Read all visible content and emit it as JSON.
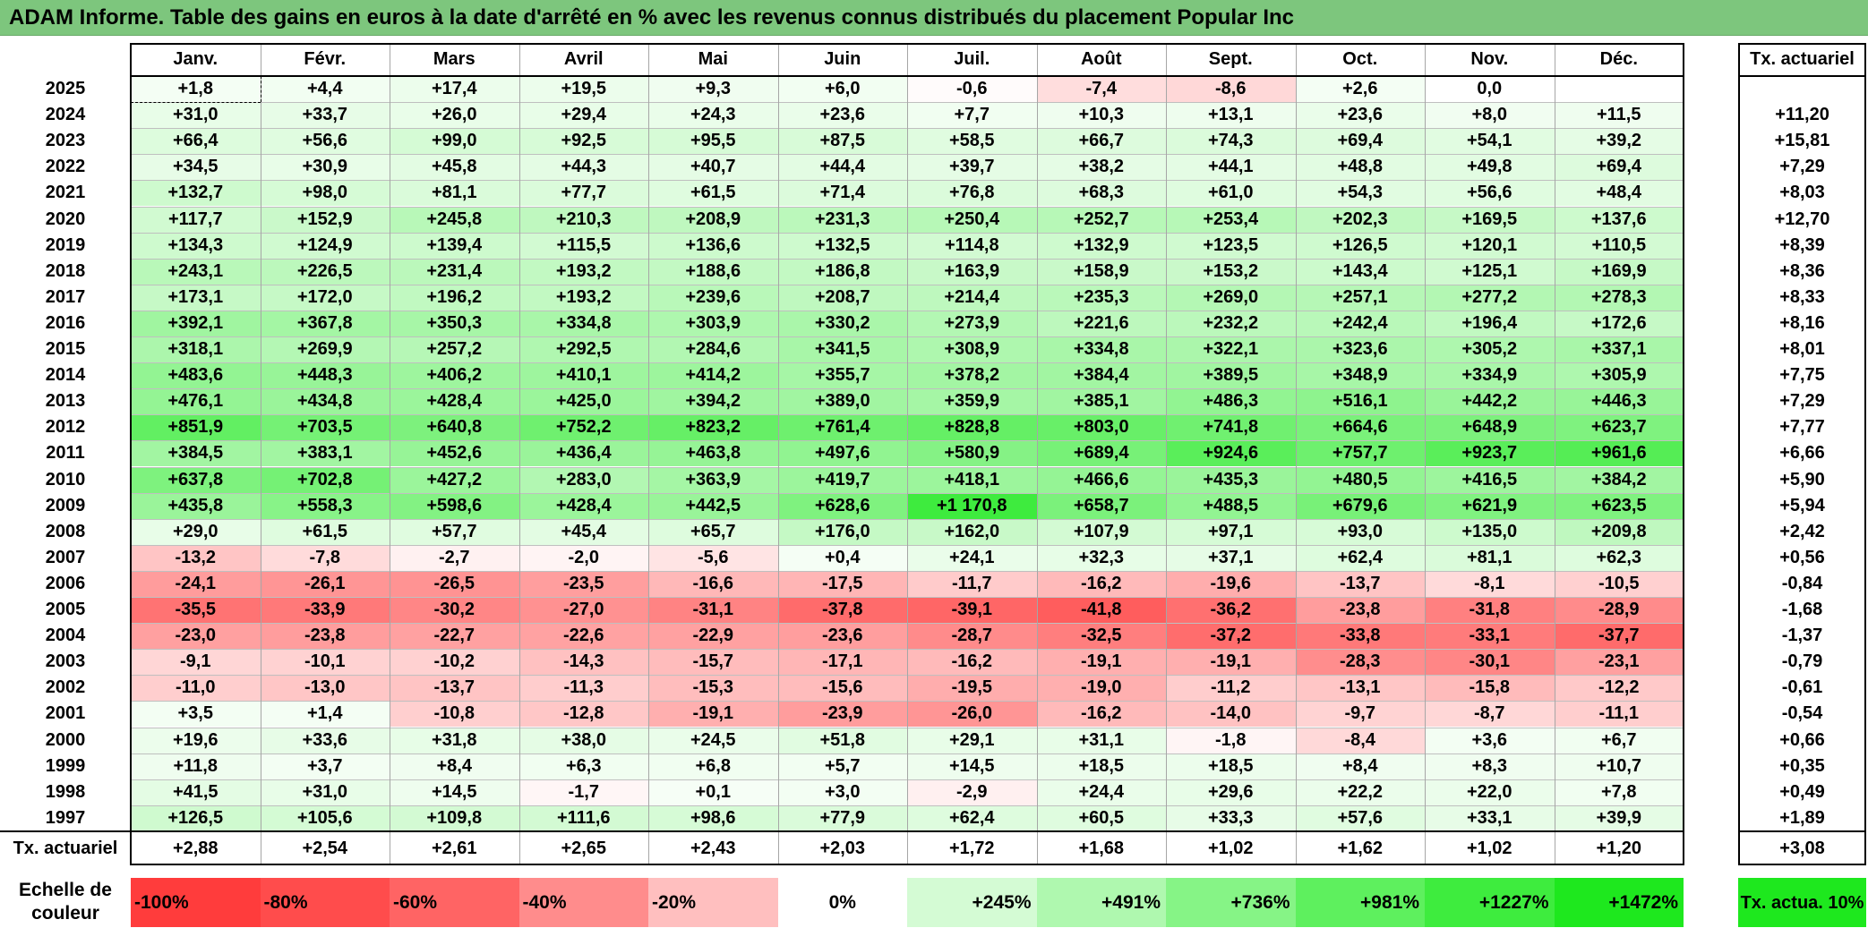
{
  "title": "ADAM Informe. Table des gains en euros à la date d'arrêté en % avec les revenus connus distribués du placement Popular Inc",
  "chart_data": {
    "type": "table",
    "months": [
      "Janv.",
      "Févr.",
      "Mars",
      "Avril",
      "Mai",
      "Juin",
      "Juil.",
      "Août",
      "Sept.",
      "Oct.",
      "Nov.",
      "Déc."
    ],
    "rate_header": "Tx. actuariel",
    "rows": [
      {
        "year": "2025",
        "values": [
          "+1,8",
          "+4,4",
          "+17,4",
          "+19,5",
          "+9,3",
          "+6,0",
          "-0,6",
          "-7,4",
          "-8,6",
          "+2,6",
          "0,0",
          ""
        ],
        "rate": ""
      },
      {
        "year": "2024",
        "values": [
          "+31,0",
          "+33,7",
          "+26,0",
          "+29,4",
          "+24,3",
          "+23,6",
          "+7,7",
          "+10,3",
          "+13,1",
          "+23,6",
          "+8,0",
          "+11,5"
        ],
        "rate": "+11,20"
      },
      {
        "year": "2023",
        "values": [
          "+66,4",
          "+56,6",
          "+99,0",
          "+92,5",
          "+95,5",
          "+87,5",
          "+58,5",
          "+66,7",
          "+74,3",
          "+69,4",
          "+54,1",
          "+39,2"
        ],
        "rate": "+15,81"
      },
      {
        "year": "2022",
        "values": [
          "+34,5",
          "+30,9",
          "+45,8",
          "+44,3",
          "+40,7",
          "+44,4",
          "+39,7",
          "+38,2",
          "+44,1",
          "+48,8",
          "+49,8",
          "+69,4"
        ],
        "rate": "+7,29"
      },
      {
        "year": "2021",
        "values": [
          "+132,7",
          "+98,0",
          "+81,1",
          "+77,7",
          "+61,5",
          "+71,4",
          "+76,8",
          "+68,3",
          "+61,0",
          "+54,3",
          "+56,6",
          "+48,4"
        ],
        "rate": "+8,03"
      },
      {
        "year": "2020",
        "values": [
          "+117,7",
          "+152,9",
          "+245,8",
          "+210,3",
          "+208,9",
          "+231,3",
          "+250,4",
          "+252,7",
          "+253,4",
          "+202,3",
          "+169,5",
          "+137,6"
        ],
        "rate": "+12,70"
      },
      {
        "year": "2019",
        "values": [
          "+134,3",
          "+124,9",
          "+139,4",
          "+115,5",
          "+136,6",
          "+132,5",
          "+114,8",
          "+132,9",
          "+123,5",
          "+126,5",
          "+120,1",
          "+110,5"
        ],
        "rate": "+8,39"
      },
      {
        "year": "2018",
        "values": [
          "+243,1",
          "+226,5",
          "+231,4",
          "+193,2",
          "+188,6",
          "+186,8",
          "+163,9",
          "+158,9",
          "+153,2",
          "+143,4",
          "+125,1",
          "+169,9"
        ],
        "rate": "+8,36"
      },
      {
        "year": "2017",
        "values": [
          "+173,1",
          "+172,0",
          "+196,2",
          "+193,2",
          "+239,6",
          "+208,7",
          "+214,4",
          "+235,3",
          "+269,0",
          "+257,1",
          "+277,2",
          "+278,3"
        ],
        "rate": "+8,33"
      },
      {
        "year": "2016",
        "values": [
          "+392,1",
          "+367,8",
          "+350,3",
          "+334,8",
          "+303,9",
          "+330,2",
          "+273,9",
          "+221,6",
          "+232,2",
          "+242,4",
          "+196,4",
          "+172,6"
        ],
        "rate": "+8,16"
      },
      {
        "year": "2015",
        "values": [
          "+318,1",
          "+269,9",
          "+257,2",
          "+292,5",
          "+284,6",
          "+341,5",
          "+308,9",
          "+334,8",
          "+322,1",
          "+323,6",
          "+305,2",
          "+337,1"
        ],
        "rate": "+8,01"
      },
      {
        "year": "2014",
        "values": [
          "+483,6",
          "+448,3",
          "+406,2",
          "+410,1",
          "+414,2",
          "+355,7",
          "+378,2",
          "+384,4",
          "+389,5",
          "+348,9",
          "+334,9",
          "+305,9"
        ],
        "rate": "+7,75"
      },
      {
        "year": "2013",
        "values": [
          "+476,1",
          "+434,8",
          "+428,4",
          "+425,0",
          "+394,2",
          "+389,0",
          "+359,9",
          "+385,1",
          "+486,3",
          "+516,1",
          "+442,2",
          "+446,3"
        ],
        "rate": "+7,29"
      },
      {
        "year": "2012",
        "values": [
          "+851,9",
          "+703,5",
          "+640,8",
          "+752,2",
          "+823,2",
          "+761,4",
          "+828,8",
          "+803,0",
          "+741,8",
          "+664,6",
          "+648,9",
          "+623,7"
        ],
        "rate": "+7,77"
      },
      {
        "year": "2011",
        "values": [
          "+384,5",
          "+383,1",
          "+452,6",
          "+436,4",
          "+463,8",
          "+497,6",
          "+580,9",
          "+689,4",
          "+924,6",
          "+757,7",
          "+923,7",
          "+961,6"
        ],
        "rate": "+6,66"
      },
      {
        "year": "2010",
        "values": [
          "+637,8",
          "+702,8",
          "+427,2",
          "+283,0",
          "+363,9",
          "+419,7",
          "+418,1",
          "+466,6",
          "+435,3",
          "+480,5",
          "+416,5",
          "+384,2"
        ],
        "rate": "+5,90"
      },
      {
        "year": "2009",
        "values": [
          "+435,8",
          "+558,3",
          "+598,6",
          "+428,4",
          "+442,5",
          "+628,6",
          "+1 170,8",
          "+658,7",
          "+488,5",
          "+679,6",
          "+621,9",
          "+623,5"
        ],
        "rate": "+5,94"
      },
      {
        "year": "2008",
        "values": [
          "+29,0",
          "+61,5",
          "+57,7",
          "+45,4",
          "+65,7",
          "+176,0",
          "+162,0",
          "+107,9",
          "+97,1",
          "+93,0",
          "+135,0",
          "+209,8"
        ],
        "rate": "+2,42"
      },
      {
        "year": "2007",
        "values": [
          "-13,2",
          "-7,8",
          "-2,7",
          "-2,0",
          "-5,6",
          "+0,4",
          "+24,1",
          "+32,3",
          "+37,1",
          "+62,4",
          "+81,1",
          "+62,3"
        ],
        "rate": "+0,56"
      },
      {
        "year": "2006",
        "values": [
          "-24,1",
          "-26,1",
          "-26,5",
          "-23,5",
          "-16,6",
          "-17,5",
          "-11,7",
          "-16,2",
          "-19,6",
          "-13,7",
          "-8,1",
          "-10,5"
        ],
        "rate": "-0,84"
      },
      {
        "year": "2005",
        "values": [
          "-35,5",
          "-33,9",
          "-30,2",
          "-27,0",
          "-31,1",
          "-37,8",
          "-39,1",
          "-41,8",
          "-36,2",
          "-23,8",
          "-31,8",
          "-28,9"
        ],
        "rate": "-1,68"
      },
      {
        "year": "2004",
        "values": [
          "-23,0",
          "-23,8",
          "-22,7",
          "-22,6",
          "-22,9",
          "-23,6",
          "-28,7",
          "-32,5",
          "-37,2",
          "-33,8",
          "-33,1",
          "-37,7"
        ],
        "rate": "-1,37"
      },
      {
        "year": "2003",
        "values": [
          "-9,1",
          "-10,1",
          "-10,2",
          "-14,3",
          "-15,7",
          "-17,1",
          "-16,2",
          "-19,1",
          "-19,1",
          "-28,3",
          "-30,1",
          "-23,1"
        ],
        "rate": "-0,79"
      },
      {
        "year": "2002",
        "values": [
          "-11,0",
          "-13,0",
          "-13,7",
          "-11,3",
          "-15,3",
          "-15,6",
          "-19,5",
          "-19,0",
          "-11,2",
          "-13,1",
          "-15,8",
          "-12,2"
        ],
        "rate": "-0,61"
      },
      {
        "year": "2001",
        "values": [
          "+3,5",
          "+1,4",
          "-10,8",
          "-12,8",
          "-19,1",
          "-23,9",
          "-26,0",
          "-16,2",
          "-14,0",
          "-9,7",
          "-8,7",
          "-11,1"
        ],
        "rate": "-0,54"
      },
      {
        "year": "2000",
        "values": [
          "+19,6",
          "+33,6",
          "+31,8",
          "+38,0",
          "+24,5",
          "+51,8",
          "+29,1",
          "+31,1",
          "-1,8",
          "-8,4",
          "+3,6",
          "+6,7"
        ],
        "rate": "+0,66"
      },
      {
        "year": "1999",
        "values": [
          "+11,8",
          "+3,7",
          "+8,4",
          "+6,3",
          "+6,8",
          "+5,7",
          "+14,5",
          "+18,5",
          "+18,5",
          "+8,4",
          "+8,3",
          "+10,7"
        ],
        "rate": "+0,35"
      },
      {
        "year": "1998",
        "values": [
          "+41,5",
          "+31,0",
          "+14,5",
          "-1,7",
          "+0,1",
          "+3,0",
          "-2,9",
          "+24,4",
          "+29,6",
          "+22,2",
          "+22,0",
          "+7,8"
        ],
        "rate": "+0,49"
      },
      {
        "year": "1997",
        "values": [
          "+126,5",
          "+105,6",
          "+109,8",
          "+111,6",
          "+98,6",
          "+77,9",
          "+62,4",
          "+60,5",
          "+33,3",
          "+57,6",
          "+33,1",
          "+39,9"
        ],
        "rate": "+1,89"
      }
    ],
    "total_row": {
      "label": "Tx. actuariel",
      "values": [
        "+2,88",
        "+2,54",
        "+2,61",
        "+2,65",
        "+2,43",
        "+2,03",
        "+1,72",
        "+1,68",
        "+1,02",
        "+1,62",
        "+1,02",
        "+1,20"
      ],
      "rate": "+3,08"
    },
    "legend": {
      "label": "Echelle de couleur",
      "steps": [
        "-100%",
        "-80%",
        "-60%",
        "-40%",
        "-20%",
        "0%",
        "+245%",
        "+491%",
        "+736%",
        "+981%",
        "+1227%",
        "+1472%"
      ],
      "target_label": "Tx. actua. 10%"
    },
    "colors": {
      "title_bg": "#7dc67d",
      "negative_max": "#ff3c3c",
      "positive_max": "#1ee81e",
      "neutral": "#ffffff",
      "target": "#1ee81e"
    }
  }
}
